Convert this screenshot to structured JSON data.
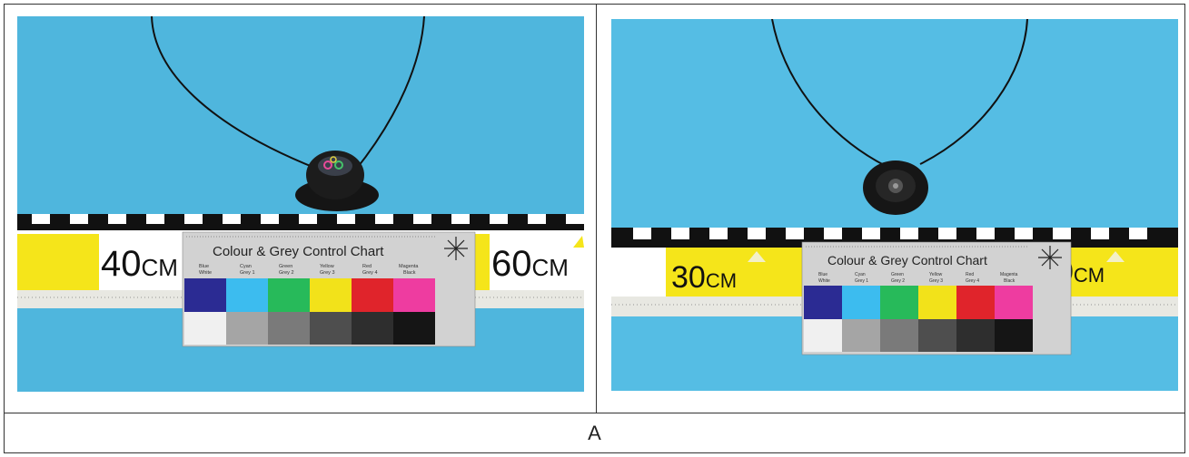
{
  "caption": "A",
  "left_photo": {
    "ruler_labels": [
      "40",
      "60"
    ],
    "ruler_unit": "CM",
    "chart_title": "Colour & Grey Control Chart",
    "colors_top": [
      "Blue",
      "Cyan",
      "Green",
      "Yellow",
      "Red",
      "Magenta"
    ],
    "colors_bottom": [
      "White",
      "Grey 1",
      "Grey 2",
      "Grey 3",
      "Grey 4",
      "Black"
    ]
  },
  "right_photo": {
    "ruler_labels": [
      "30",
      "0"
    ],
    "ruler_unit": "CM",
    "chart_title": "Colour & Grey Control Chart",
    "colors_top": [
      "Blue",
      "Cyan",
      "Green",
      "Yellow",
      "Red",
      "Magenta"
    ],
    "colors_bottom": [
      "White",
      "Grey 1",
      "Grey 2",
      "Grey 3",
      "Grey 4",
      "Black"
    ]
  },
  "palette": {
    "background": "#4fb6dd",
    "swatches": [
      "#2b2b93",
      "#3cbcef",
      "#27ba5a",
      "#f2e21a",
      "#e0242b",
      "#ee3ca0"
    ],
    "greys": [
      "#f0f0f0",
      "#a5a5a5",
      "#7a7a7a",
      "#4e4e4e",
      "#2e2e2e",
      "#151515"
    ]
  }
}
